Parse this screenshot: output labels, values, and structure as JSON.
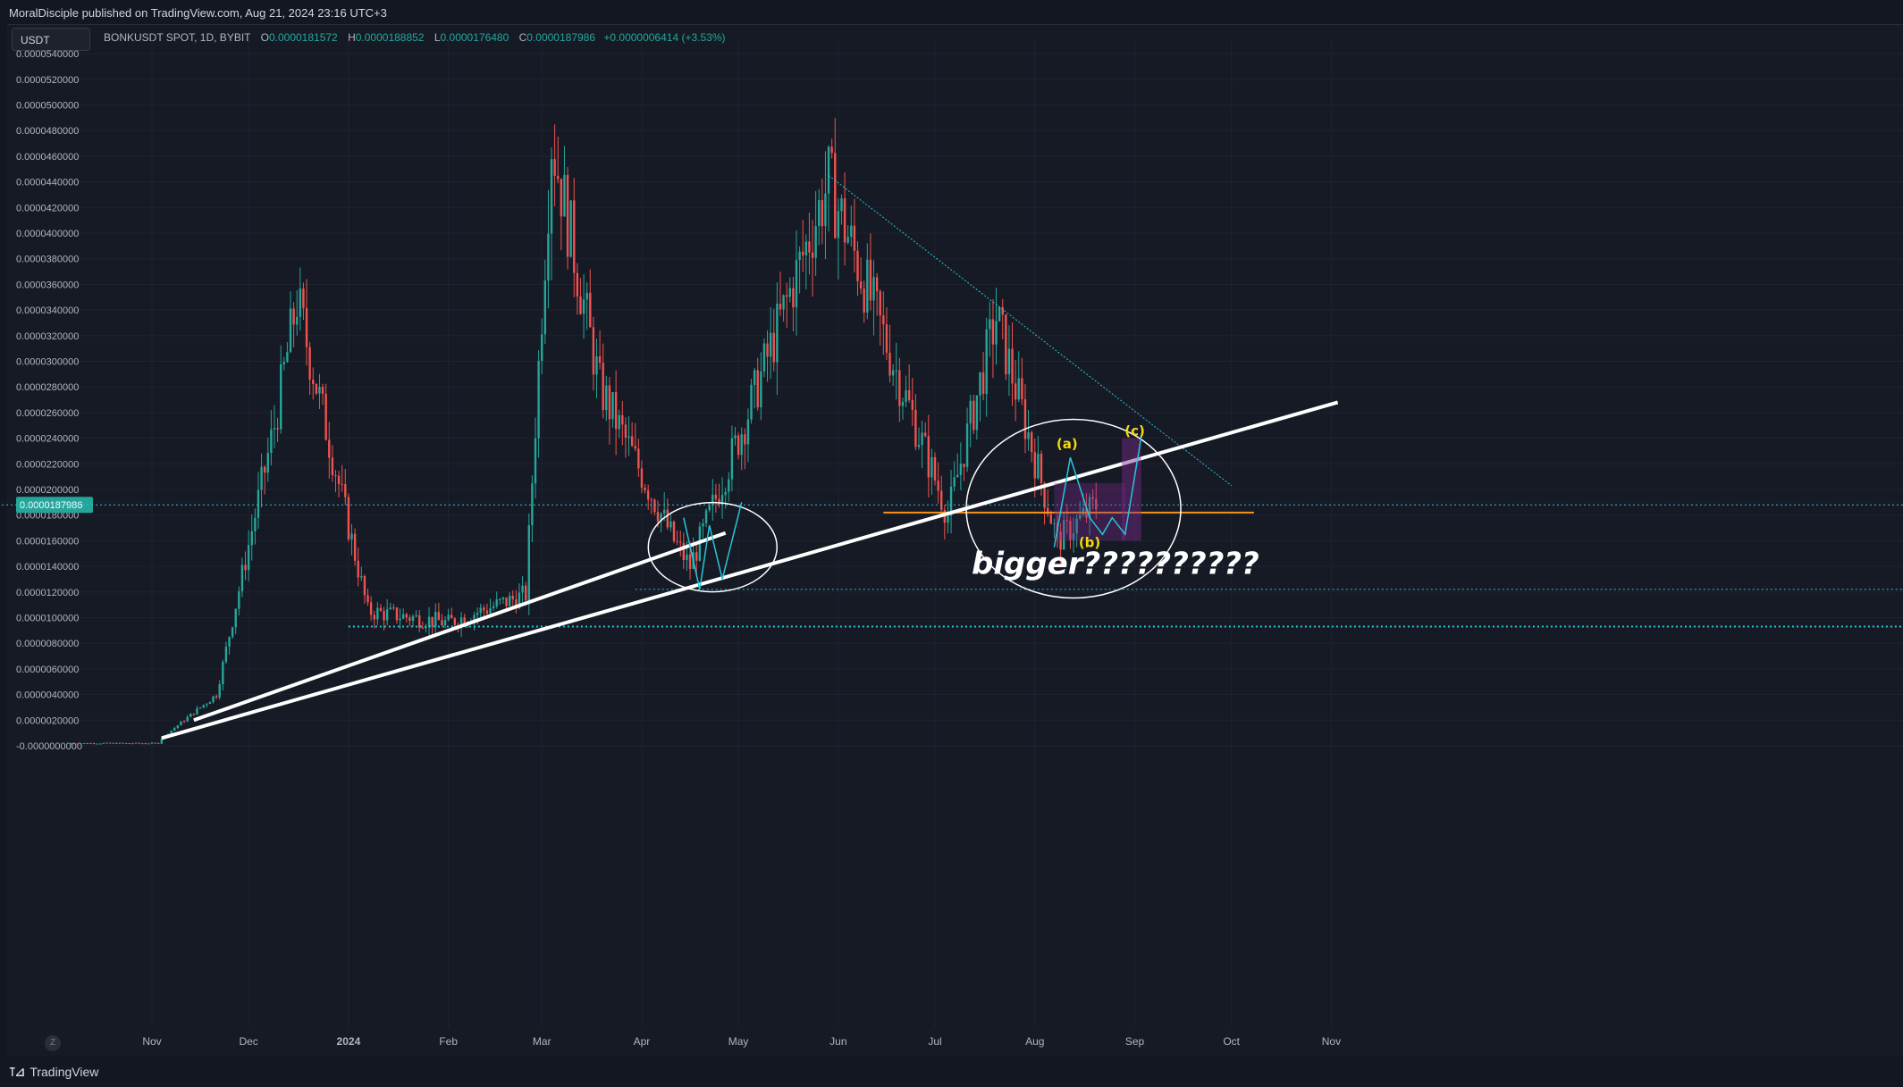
{
  "header": {
    "publisher": "MoralDisciple published on TradingView.com, Aug 21, 2024 23:16 UTC+3"
  },
  "symbol_box": {
    "label": "USDT"
  },
  "legend": {
    "symbol": "BONKUSDT SPOT, 1D, BYBIT",
    "open_label": "O",
    "open": "0.0000181572",
    "high_label": "H",
    "high": "0.0000188852",
    "low_label": "L",
    "low": "0.0000176480",
    "close_label": "C",
    "close": "0.0000187986",
    "change": "+0.0000006414 (+3.53%)"
  },
  "footer": {
    "brand": "TradingView",
    "zoom_reset": "Z"
  },
  "colors": {
    "background": "#161a25",
    "up": "#26a69a",
    "down": "#ef5350",
    "trendline": "#ffffff",
    "support": "#f7931a",
    "dotted": "#26c6da",
    "label_yellow": "#f5d90a",
    "price_badge": "#26a69a",
    "projection_box": "#7b2b8c"
  },
  "chart_data": {
    "type": "candlestick",
    "title": "",
    "ylim": [
      -1e-10,
      5.4e-06
    ],
    "y_ticks": [
      "0.0000540000",
      "0.0000520000",
      "0.0000500000",
      "0.0000480000",
      "0.0000460000",
      "0.0000440000",
      "0.0000420000",
      "0.0000400000",
      "0.0000380000",
      "0.0000360000",
      "0.0000340000",
      "0.0000320000",
      "0.0000300000",
      "0.0000280000",
      "0.0000260000",
      "0.0000240000",
      "0.0000220000",
      "0.0000200000",
      "0.0000180000",
      "0.0000160000",
      "0.0000140000",
      "0.0000120000",
      "0.0000100000",
      "0.0000080000",
      "0.0000060000",
      "0.0000040000",
      "0.0000020000",
      "-0.0000000000"
    ],
    "y_tick_values": [
      54,
      52,
      50,
      48,
      46,
      44,
      42,
      40,
      38,
      36,
      34,
      32,
      30,
      28,
      26,
      24,
      22,
      20,
      18,
      16,
      14,
      12,
      10,
      8,
      6,
      4,
      2,
      0
    ],
    "x_ticks": [
      "Nov",
      "Dec",
      "2024",
      "Feb",
      "Mar",
      "Apr",
      "May",
      "Jun",
      "Jul",
      "Aug",
      "Sep",
      "Oct",
      "Nov"
    ],
    "x_tick_days": [
      0,
      30,
      61,
      92,
      121,
      152,
      182,
      213,
      243,
      274,
      305,
      335,
      366
    ],
    "current_price": "0.0000187986",
    "current_price_value": 18.8,
    "value_unit_note": "values in units of 1e-7 USDT as shown on axis (e.g. 18.8 = 0.0000188)",
    "key_points": [
      {
        "day": 3,
        "price": 0.6
      },
      {
        "day": 20,
        "price": 4.0
      },
      {
        "day": 38,
        "price": 25
      },
      {
        "day": 45,
        "price": 34.8
      },
      {
        "day": 67,
        "price": 10.5
      },
      {
        "day": 92,
        "price": 9.6
      },
      {
        "day": 116,
        "price": 11.8
      },
      {
        "day": 124,
        "price": 47.5
      },
      {
        "day": 139,
        "price": 28
      },
      {
        "day": 162,
        "price": 16
      },
      {
        "day": 167,
        "price": 14
      },
      {
        "day": 185,
        "price": 26
      },
      {
        "day": 210,
        "price": 44
      },
      {
        "day": 247,
        "price": 18
      },
      {
        "day": 262,
        "price": 33.5
      },
      {
        "day": 281,
        "price": 16
      },
      {
        "day": 293,
        "price": 18.8
      }
    ],
    "annotations": {
      "wave_a": "(a)",
      "wave_b": "(b)",
      "wave_c": "(c)",
      "question": "bigger??????????"
    },
    "levels": {
      "support_orange": 18.2,
      "dotted_low_1": 12.2,
      "dotted_low_2": 9.3,
      "dotted_current": 18.8
    },
    "grid": true
  }
}
